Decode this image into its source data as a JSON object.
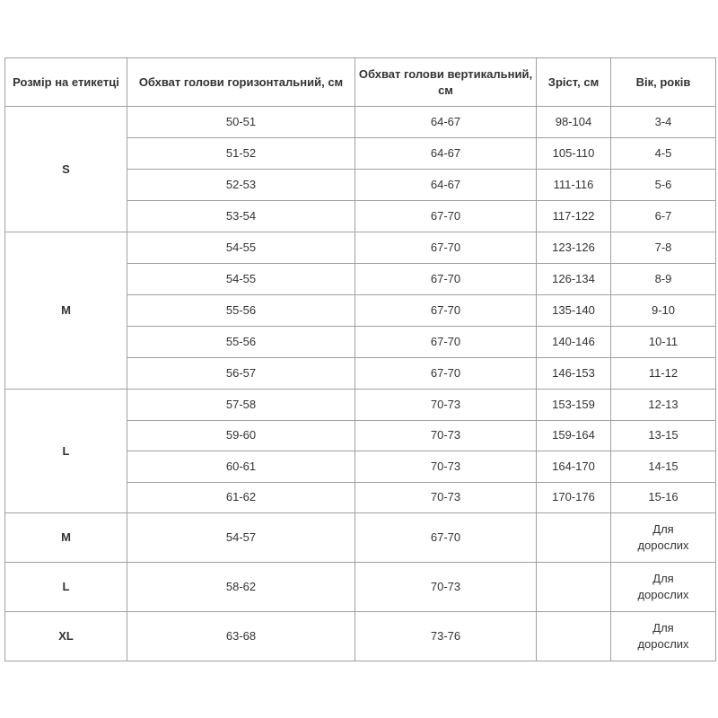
{
  "headers": [
    "Розмір на етикетці",
    "Обхват голови горизонтальний, см",
    "Обхват голови вертикальний, см",
    "Зріст, см",
    "Вік, років"
  ],
  "groups": [
    {
      "size": "S",
      "rows": [
        [
          "50-51",
          "64-67",
          "98-104",
          "3-4"
        ],
        [
          "51-52",
          "64-67",
          "105-110",
          "4-5"
        ],
        [
          "52-53",
          "64-67",
          "111-116",
          "5-6"
        ],
        [
          "53-54",
          "67-70",
          "117-122",
          "6-7"
        ]
      ]
    },
    {
      "size": "M",
      "rows": [
        [
          "54-55",
          "67-70",
          "123-126",
          "7-8"
        ],
        [
          "54-55",
          "67-70",
          "126-134",
          "8-9"
        ],
        [
          "55-56",
          "67-70",
          "135-140",
          "9-10"
        ],
        [
          "55-56",
          "67-70",
          "140-146",
          "10-11"
        ],
        [
          "56-57",
          "67-70",
          "146-153",
          "11-12"
        ]
      ]
    },
    {
      "size": "L",
      "rows": [
        [
          "57-58",
          "70-73",
          "153-159",
          "12-13"
        ],
        [
          "59-60",
          "70-73",
          "159-164",
          "13-15"
        ],
        [
          "60-61",
          "70-73",
          "164-170",
          "14-15"
        ],
        [
          "61-62",
          "70-73",
          "170-176",
          "15-16"
        ]
      ]
    },
    {
      "size": "M",
      "rows": [
        [
          "54-57",
          "67-70",
          "",
          "Для дорослих"
        ]
      ]
    },
    {
      "size": "L",
      "rows": [
        [
          "58-62",
          "70-73",
          "",
          "Для дорослих"
        ]
      ]
    },
    {
      "size": "XL",
      "rows": [
        [
          "63-68",
          "73-76",
          "",
          "Для дорослих"
        ]
      ]
    }
  ]
}
